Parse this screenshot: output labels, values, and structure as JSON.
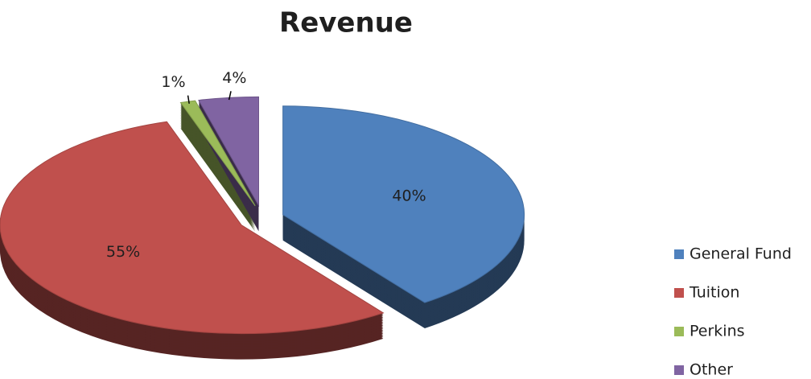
{
  "chart_data": {
    "type": "pie",
    "title": "Revenue",
    "categories": [
      "General Fund",
      "Tuition",
      "Perkins",
      "Other"
    ],
    "values": [
      40,
      55,
      1,
      4
    ],
    "value_labels": [
      "40%",
      "55%",
      "1%",
      "4%"
    ],
    "colors": [
      "#4f81bd",
      "#c0504d",
      "#9bbb59",
      "#8064a2"
    ],
    "legend": "right"
  }
}
